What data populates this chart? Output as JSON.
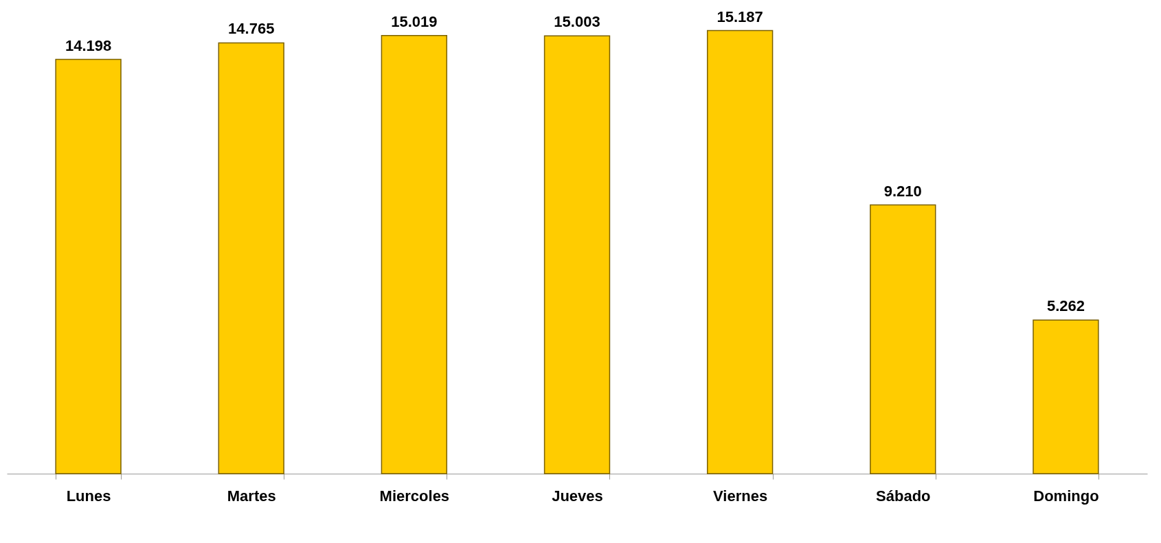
{
  "chart_data": {
    "type": "bar",
    "categories": [
      "Lunes",
      "Martes",
      "Miercoles",
      "Jueves",
      "Viernes",
      "Sábado",
      "Domingo"
    ],
    "values": [
      14198,
      14765,
      15019,
      15003,
      15187,
      9210,
      5262
    ],
    "value_labels": [
      "14.198",
      "14.765",
      "15.019",
      "15.003",
      "15.187",
      "9.210",
      "5.262"
    ],
    "color": "#ffcc00"
  }
}
